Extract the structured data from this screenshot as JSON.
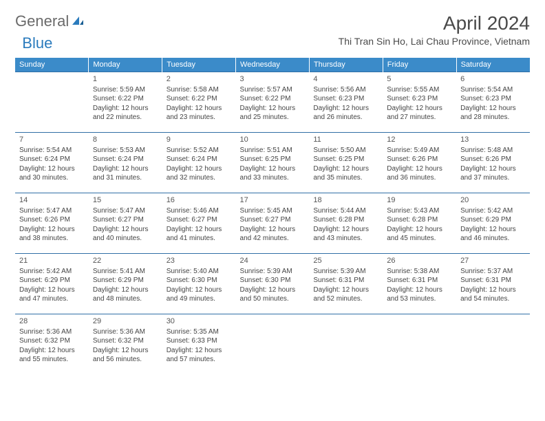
{
  "logo": {
    "general": "General",
    "blue": "Blue"
  },
  "title": "April 2024",
  "location": "Thi Tran Sin Ho, Lai Chau Province, Vietnam",
  "colors": {
    "header_bg": "#3b8bc9",
    "header_text": "#ffffff",
    "row_border": "#2f6ea5",
    "body_text": "#444444",
    "title_text": "#4a4a4a",
    "logo_gray": "#6a6a6a",
    "logo_blue": "#2b7bbd",
    "background": "#ffffff"
  },
  "typography": {
    "title_fontsize": 28,
    "location_fontsize": 14,
    "dayheader_fontsize": 11,
    "cell_fontsize": 10,
    "logo_fontsize": 22
  },
  "day_headers": [
    "Sunday",
    "Monday",
    "Tuesday",
    "Wednesday",
    "Thursday",
    "Friday",
    "Saturday"
  ],
  "weeks": [
    [
      null,
      {
        "n": "1",
        "sr": "Sunrise: 5:59 AM",
        "ss": "Sunset: 6:22 PM",
        "d1": "Daylight: 12 hours",
        "d2": "and 22 minutes."
      },
      {
        "n": "2",
        "sr": "Sunrise: 5:58 AM",
        "ss": "Sunset: 6:22 PM",
        "d1": "Daylight: 12 hours",
        "d2": "and 23 minutes."
      },
      {
        "n": "3",
        "sr": "Sunrise: 5:57 AM",
        "ss": "Sunset: 6:22 PM",
        "d1": "Daylight: 12 hours",
        "d2": "and 25 minutes."
      },
      {
        "n": "4",
        "sr": "Sunrise: 5:56 AM",
        "ss": "Sunset: 6:23 PM",
        "d1": "Daylight: 12 hours",
        "d2": "and 26 minutes."
      },
      {
        "n": "5",
        "sr": "Sunrise: 5:55 AM",
        "ss": "Sunset: 6:23 PM",
        "d1": "Daylight: 12 hours",
        "d2": "and 27 minutes."
      },
      {
        "n": "6",
        "sr": "Sunrise: 5:54 AM",
        "ss": "Sunset: 6:23 PM",
        "d1": "Daylight: 12 hours",
        "d2": "and 28 minutes."
      }
    ],
    [
      {
        "n": "7",
        "sr": "Sunrise: 5:54 AM",
        "ss": "Sunset: 6:24 PM",
        "d1": "Daylight: 12 hours",
        "d2": "and 30 minutes."
      },
      {
        "n": "8",
        "sr": "Sunrise: 5:53 AM",
        "ss": "Sunset: 6:24 PM",
        "d1": "Daylight: 12 hours",
        "d2": "and 31 minutes."
      },
      {
        "n": "9",
        "sr": "Sunrise: 5:52 AM",
        "ss": "Sunset: 6:24 PM",
        "d1": "Daylight: 12 hours",
        "d2": "and 32 minutes."
      },
      {
        "n": "10",
        "sr": "Sunrise: 5:51 AM",
        "ss": "Sunset: 6:25 PM",
        "d1": "Daylight: 12 hours",
        "d2": "and 33 minutes."
      },
      {
        "n": "11",
        "sr": "Sunrise: 5:50 AM",
        "ss": "Sunset: 6:25 PM",
        "d1": "Daylight: 12 hours",
        "d2": "and 35 minutes."
      },
      {
        "n": "12",
        "sr": "Sunrise: 5:49 AM",
        "ss": "Sunset: 6:26 PM",
        "d1": "Daylight: 12 hours",
        "d2": "and 36 minutes."
      },
      {
        "n": "13",
        "sr": "Sunrise: 5:48 AM",
        "ss": "Sunset: 6:26 PM",
        "d1": "Daylight: 12 hours",
        "d2": "and 37 minutes."
      }
    ],
    [
      {
        "n": "14",
        "sr": "Sunrise: 5:47 AM",
        "ss": "Sunset: 6:26 PM",
        "d1": "Daylight: 12 hours",
        "d2": "and 38 minutes."
      },
      {
        "n": "15",
        "sr": "Sunrise: 5:47 AM",
        "ss": "Sunset: 6:27 PM",
        "d1": "Daylight: 12 hours",
        "d2": "and 40 minutes."
      },
      {
        "n": "16",
        "sr": "Sunrise: 5:46 AM",
        "ss": "Sunset: 6:27 PM",
        "d1": "Daylight: 12 hours",
        "d2": "and 41 minutes."
      },
      {
        "n": "17",
        "sr": "Sunrise: 5:45 AM",
        "ss": "Sunset: 6:27 PM",
        "d1": "Daylight: 12 hours",
        "d2": "and 42 minutes."
      },
      {
        "n": "18",
        "sr": "Sunrise: 5:44 AM",
        "ss": "Sunset: 6:28 PM",
        "d1": "Daylight: 12 hours",
        "d2": "and 43 minutes."
      },
      {
        "n": "19",
        "sr": "Sunrise: 5:43 AM",
        "ss": "Sunset: 6:28 PM",
        "d1": "Daylight: 12 hours",
        "d2": "and 45 minutes."
      },
      {
        "n": "20",
        "sr": "Sunrise: 5:42 AM",
        "ss": "Sunset: 6:29 PM",
        "d1": "Daylight: 12 hours",
        "d2": "and 46 minutes."
      }
    ],
    [
      {
        "n": "21",
        "sr": "Sunrise: 5:42 AM",
        "ss": "Sunset: 6:29 PM",
        "d1": "Daylight: 12 hours",
        "d2": "and 47 minutes."
      },
      {
        "n": "22",
        "sr": "Sunrise: 5:41 AM",
        "ss": "Sunset: 6:29 PM",
        "d1": "Daylight: 12 hours",
        "d2": "and 48 minutes."
      },
      {
        "n": "23",
        "sr": "Sunrise: 5:40 AM",
        "ss": "Sunset: 6:30 PM",
        "d1": "Daylight: 12 hours",
        "d2": "and 49 minutes."
      },
      {
        "n": "24",
        "sr": "Sunrise: 5:39 AM",
        "ss": "Sunset: 6:30 PM",
        "d1": "Daylight: 12 hours",
        "d2": "and 50 minutes."
      },
      {
        "n": "25",
        "sr": "Sunrise: 5:39 AM",
        "ss": "Sunset: 6:31 PM",
        "d1": "Daylight: 12 hours",
        "d2": "and 52 minutes."
      },
      {
        "n": "26",
        "sr": "Sunrise: 5:38 AM",
        "ss": "Sunset: 6:31 PM",
        "d1": "Daylight: 12 hours",
        "d2": "and 53 minutes."
      },
      {
        "n": "27",
        "sr": "Sunrise: 5:37 AM",
        "ss": "Sunset: 6:31 PM",
        "d1": "Daylight: 12 hours",
        "d2": "and 54 minutes."
      }
    ],
    [
      {
        "n": "28",
        "sr": "Sunrise: 5:36 AM",
        "ss": "Sunset: 6:32 PM",
        "d1": "Daylight: 12 hours",
        "d2": "and 55 minutes."
      },
      {
        "n": "29",
        "sr": "Sunrise: 5:36 AM",
        "ss": "Sunset: 6:32 PM",
        "d1": "Daylight: 12 hours",
        "d2": "and 56 minutes."
      },
      {
        "n": "30",
        "sr": "Sunrise: 5:35 AM",
        "ss": "Sunset: 6:33 PM",
        "d1": "Daylight: 12 hours",
        "d2": "and 57 minutes."
      },
      null,
      null,
      null,
      null
    ]
  ]
}
